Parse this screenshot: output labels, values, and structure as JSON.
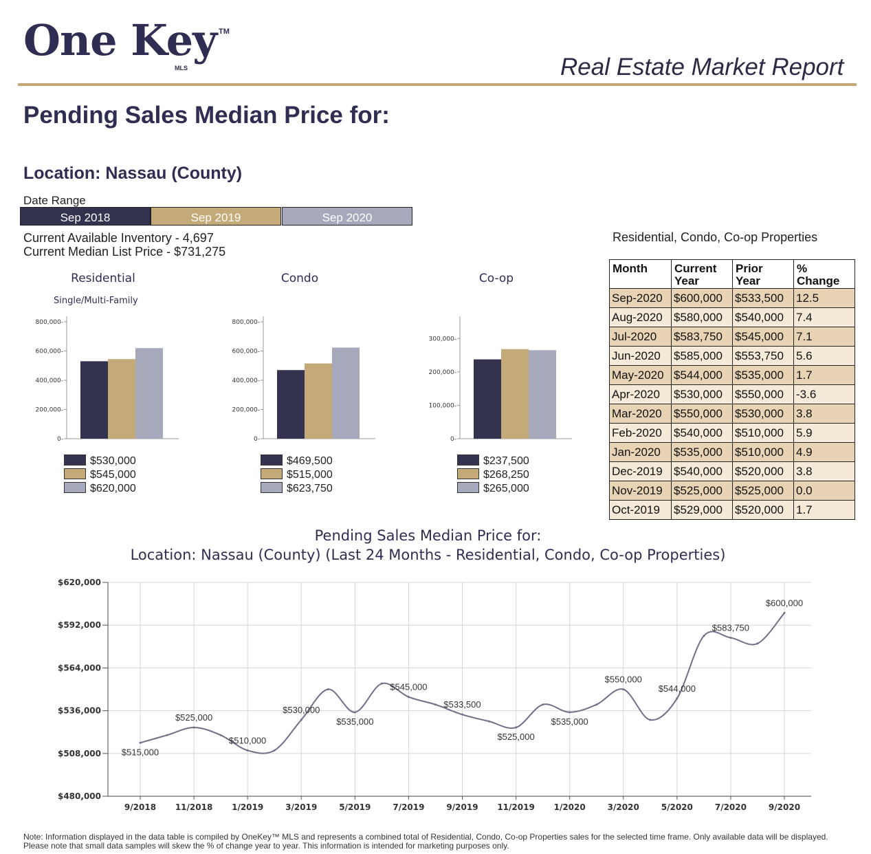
{
  "header": {
    "logo": "One Key",
    "logo_tm": "TM",
    "logo_mls": "MLS",
    "report_title": "Real Estate Market Report"
  },
  "heading": "Pending Sales Median Price for:",
  "location": "Location: Nassau (County)",
  "date_range": {
    "label": "Date Range",
    "items": [
      {
        "label": "Sep 2018",
        "color": "#33324f"
      },
      {
        "label": "Sep 2019",
        "color": "#c4aa78"
      },
      {
        "label": "Sep 2020",
        "color": "#a6a8bc"
      }
    ]
  },
  "inventory": "Current Available Inventory - 4,697",
  "median_list_price": "Current Median List Price - $731,275",
  "colors": {
    "s2018": "#33324f",
    "s2019": "#c4aa78",
    "s2020": "#a6a8bc",
    "accent": "#c4aa72",
    "line": "#6e6f88"
  },
  "chart_data": [
    {
      "type": "bar",
      "title": "Residential",
      "subtitle": "Single/Multi-Family",
      "categories": [
        "Sep 2018",
        "Sep 2019",
        "Sep 2020"
      ],
      "values": [
        530000,
        545000,
        620000
      ],
      "ylim": [
        0,
        800000
      ],
      "yticks": [
        "800,000",
        "600,000",
        "400,000",
        "200,000",
        "0"
      ],
      "legend": [
        "$530,000",
        "$545,000",
        "$620,000"
      ]
    },
    {
      "type": "bar",
      "title": "Condo",
      "categories": [
        "Sep 2018",
        "Sep 2019",
        "Sep 2020"
      ],
      "values": [
        469500,
        515000,
        623750
      ],
      "ylim": [
        0,
        800000
      ],
      "yticks": [
        "800,000",
        "600,000",
        "400,000",
        "200,000",
        "0"
      ],
      "legend": [
        "$469,500",
        "$515,000",
        "$623,750"
      ]
    },
    {
      "type": "bar",
      "title": "Co-op",
      "categories": [
        "Sep 2018",
        "Sep 2019",
        "Sep 2020"
      ],
      "values": [
        237500,
        268250,
        265000
      ],
      "ylim": [
        0,
        350000
      ],
      "yticks": [
        "300,000",
        "200,000",
        "100,000",
        "0"
      ],
      "legend": [
        "$237,500",
        "$268,250",
        "$265,000"
      ]
    },
    {
      "type": "table",
      "title": "Residential, Condo, Co-op Properties",
      "columns": [
        [
          "Month"
        ],
        [
          "Current",
          "Year"
        ],
        [
          "Prior",
          "Year"
        ],
        [
          "%",
          "Change"
        ]
      ],
      "rows": [
        [
          "Sep-2020",
          "$600,000",
          "$533,500",
          "12.5"
        ],
        [
          "Aug-2020",
          "$580,000",
          "$540,000",
          "7.4"
        ],
        [
          "Jul-2020",
          "$583,750",
          "$545,000",
          "7.1"
        ],
        [
          "Jun-2020",
          "$585,000",
          "$553,750",
          "5.6"
        ],
        [
          "May-2020",
          "$544,000",
          "$535,000",
          "1.7"
        ],
        [
          "Apr-2020",
          "$530,000",
          "$550,000",
          "-3.6"
        ],
        [
          "Mar-2020",
          "$550,000",
          "$530,000",
          "3.8"
        ],
        [
          "Feb-2020",
          "$540,000",
          "$510,000",
          "5.9"
        ],
        [
          "Jan-2020",
          "$535,000",
          "$510,000",
          "4.9"
        ],
        [
          "Dec-2019",
          "$540,000",
          "$520,000",
          "3.8"
        ],
        [
          "Nov-2019",
          "$525,000",
          "$525,000",
          "0.0"
        ],
        [
          "Oct-2019",
          "$529,000",
          "$520,000",
          "1.7"
        ]
      ]
    },
    {
      "type": "line",
      "title": "Pending Sales Median Price for:",
      "subtitle": "Location: Nassau (County) (Last 24 Months - Residential, Condo, Co-op Properties)",
      "x": [
        "9/2018",
        "10/2018",
        "11/2018",
        "12/2018",
        "1/2019",
        "2/2019",
        "3/2019",
        "4/2019",
        "5/2019",
        "6/2019",
        "7/2019",
        "8/2019",
        "9/2019",
        "10/2019",
        "11/2019",
        "12/2019",
        "1/2020",
        "2/2020",
        "3/2020",
        "4/2020",
        "5/2020",
        "6/2020",
        "7/2020",
        "8/2020",
        "9/2020"
      ],
      "xticks": [
        "9/2018",
        "11/2018",
        "1/2019",
        "3/2019",
        "5/2019",
        "7/2019",
        "9/2019",
        "11/2019",
        "1/2020",
        "3/2020",
        "5/2020",
        "7/2020",
        "9/2020"
      ],
      "y": [
        515000,
        520000,
        525000,
        520000,
        510000,
        510000,
        530000,
        550000,
        535000,
        553750,
        545000,
        540000,
        533500,
        529000,
        525000,
        540000,
        535000,
        540000,
        550000,
        530000,
        544000,
        585000,
        583750,
        580000,
        600000
      ],
      "ylim": [
        480000,
        620000
      ],
      "yticks": [
        "$620,000",
        "$592,000",
        "$564,000",
        "$536,000",
        "$508,000",
        "$480,000"
      ],
      "labels": [
        "$515,000",
        "",
        "$525,000",
        "",
        "$510,000",
        "",
        "$530,000",
        "",
        "$535,000",
        "",
        "$545,000",
        "",
        "$533,500",
        "",
        "$525,000",
        "",
        "$535,000",
        "",
        "$550,000",
        "",
        "$544,000",
        "",
        "$583,750",
        "",
        "$600,000"
      ],
      "grid": true
    }
  ],
  "note": "Note: Information displayed in the data table is compiled by OneKey™ MLS and represents a combined total of Residential, Condo, Co-op Properties sales for the selected time frame. Only available data will be displayed. Please note that small data samples will skew the % of change year to year. This information is intended for marketing purposes only."
}
